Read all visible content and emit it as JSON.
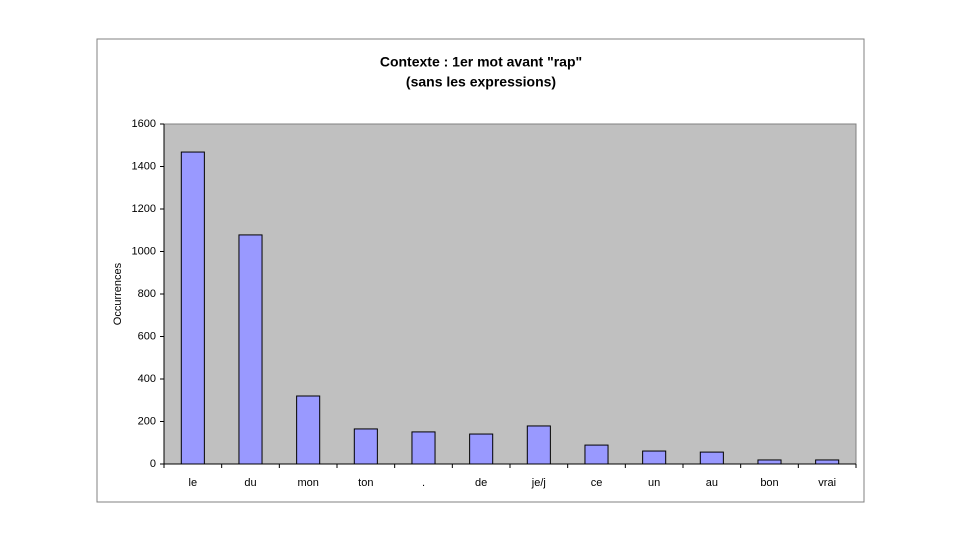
{
  "chart_data": {
    "type": "bar",
    "title": "Contexte : 1er mot avant \"rap\"",
    "subtitle": "(sans les expressions)",
    "y_label": "Occurrences",
    "categories": [
      "le",
      "du",
      "mon",
      "ton",
      ".",
      "de",
      "je/j",
      "ce",
      "un",
      "au",
      "bon",
      "vrai"
    ],
    "values": [
      1468,
      1078,
      320,
      165,
      151,
      141,
      179,
      89,
      61,
      56,
      19,
      19
    ],
    "color": "#9999ff",
    "ylim": [
      0,
      1600
    ],
    "yticks": [
      0,
      200,
      400,
      600,
      800,
      1000,
      1200,
      1400,
      1600
    ],
    "grid": false
  }
}
